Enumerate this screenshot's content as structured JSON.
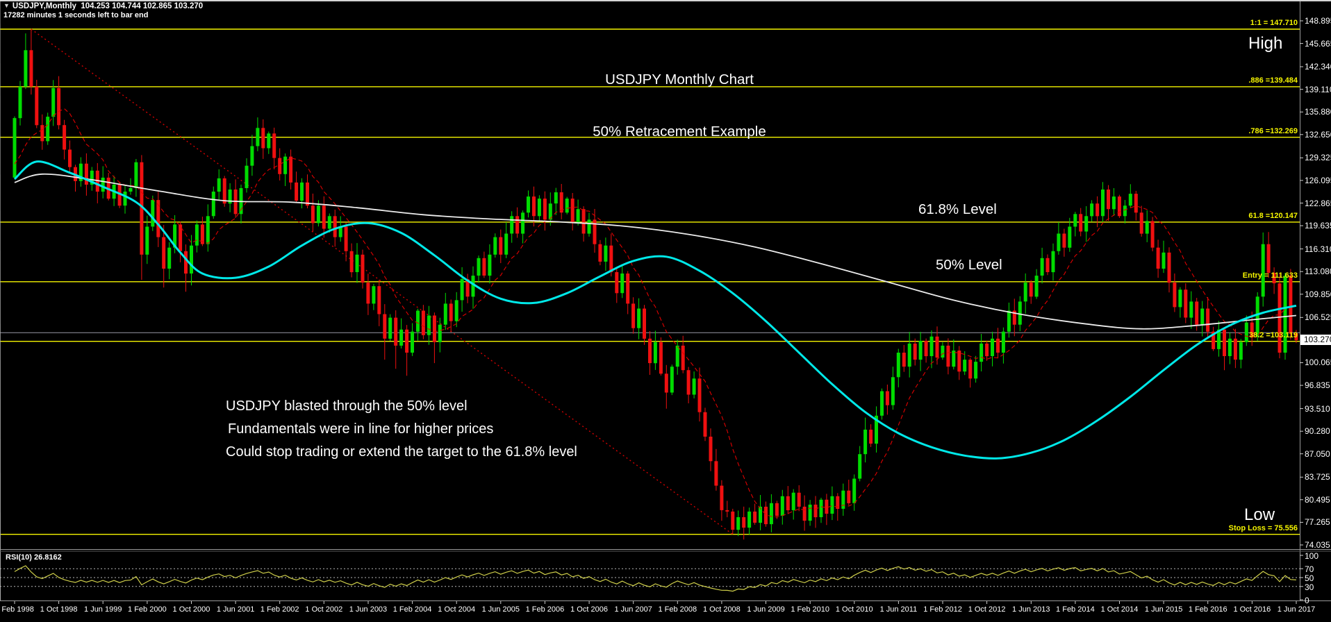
{
  "titlebar": {
    "dropdown_icon": "▼",
    "symbol_info": "USDJPY,Monthly  104.253 104.744 102.865 103.270",
    "countdown": "17282 minutes 1 seconds left to bar end"
  },
  "annotations": {
    "title_line1": "USDJPY Monthly Chart",
    "title_line2": "50% Retracement Example",
    "high": "High",
    "low": "Low",
    "level_618": "61.8% Level",
    "level_50": "50% Level",
    "note1": "USDJPY blasted through the 50% level",
    "note2": "Fundamentals were in line for higher prices",
    "note3": "Could stop trading or extend the target to the 61.8% level"
  },
  "price_axis": {
    "ticks": [
      "148.895",
      "145.665",
      "142.340",
      "139.110",
      "135.880",
      "132.650",
      "129.325",
      "126.095",
      "122.865",
      "119.635",
      "116.310",
      "113.080",
      "109.850",
      "106.525",
      "100.065",
      "96.835",
      "93.510",
      "90.280",
      "87.050",
      "83.725",
      "80.495",
      "77.265",
      "74.035"
    ],
    "current": "103.270"
  },
  "rsi_panel": {
    "label": "RSI(10) 26.8162",
    "period": 10,
    "current_value": 26.8162,
    "scale_labels": [
      "100",
      "70",
      "50",
      "30",
      "0"
    ],
    "dashed_levels": [
      70,
      50,
      30
    ]
  },
  "date_axis": [
    "1 Feb 1998",
    "1 Oct 1998",
    "1 Jun 1999",
    "1 Feb 2000",
    "1 Oct 2000",
    "1 Jun 2001",
    "1 Feb 2002",
    "1 Oct 2002",
    "1 Jun 2003",
    "1 Feb 2004",
    "1 Oct 2004",
    "1 Jun 2005",
    "1 Feb 2006",
    "1 Oct 2006",
    "1 Jun 2007",
    "1 Feb 2008",
    "1 Oct 2008",
    "1 Jun 2009",
    "1 Feb 2010",
    "1 Oct 2010",
    "1 Jun 2011",
    "1 Feb 2012",
    "1 Oct 2012",
    "1 Jun 2013",
    "1 Feb 2014",
    "1 Oct 2014",
    "1 Jun 2015",
    "1 Feb 2016",
    "1 Oct 2016",
    "1 Jun 2017"
  ],
  "fib_levels": [
    {
      "label": "1:1 = 147.710",
      "price": 147.71
    },
    {
      "label": ".886 =139.484",
      "price": 139.484
    },
    {
      "label": ".786 =132.269",
      "price": 132.269
    },
    {
      "label": "61.8 =120.147",
      "price": 120.147
    },
    {
      "label": "Entry = 111.633",
      "price": 111.633
    },
    {
      "label": "38.2 =103.119",
      "price": 103.119
    },
    {
      "label": "Stop Loss = 75.556",
      "price": 75.556
    }
  ],
  "colors": {
    "background": "#000000",
    "candle_up": "#00dc00",
    "candle_down": "#ef1010",
    "fib_line": "#f5f500",
    "ma_fast_dashed": "#e00000",
    "ma_medium": "#00e8e8",
    "ma_slow": "#ececec",
    "trendline": "#d40000",
    "rsi_line": "#cfcf4a",
    "axis_text": "#ffffff",
    "gray_price_line": "#9a9aa6",
    "separator": "#9a9a9a"
  },
  "chart_data": {
    "type": "candlestick",
    "symbol": "USDJPY",
    "timeframe": "Monthly",
    "x_start": "Feb 1998",
    "x_end": "Jun 2017",
    "ylim": [
      74.035,
      148.895
    ],
    "open_first": 126.5,
    "closes": [
      135.0,
      139.5,
      144.7,
      139.5,
      134.0,
      131.7,
      135.2,
      139.3,
      134.0,
      130.5,
      128.0,
      126.0,
      128.5,
      125.5,
      127.5,
      124.5,
      126.5,
      123.5,
      125.5,
      122.5,
      124.5,
      125.0,
      128.7,
      115.5,
      119.5,
      123.3,
      118.0,
      113.5,
      116.5,
      119.8,
      116.0,
      112.8,
      116.8,
      119.8,
      117.0,
      121.0,
      124.5,
      126.4,
      122.8,
      124.8,
      121.3,
      125.0,
      128.2,
      131.0,
      133.6,
      130.7,
      132.8,
      129.3,
      127.0,
      129.5,
      125.8,
      123.2,
      125.8,
      122.5,
      120.0,
      122.5,
      119.2,
      121.0,
      118.0,
      119.5,
      116.0,
      113.0,
      115.5,
      111.5,
      108.5,
      111.0,
      107.0,
      103.5,
      106.5,
      102.5,
      104.8,
      101.5,
      104.5,
      107.5,
      104.0,
      106.8,
      103.0,
      105.5,
      108.5,
      106.0,
      109.0,
      112.0,
      109.5,
      112.5,
      115.0,
      112.5,
      115.5,
      118.0,
      115.5,
      118.5,
      121.0,
      118.5,
      121.5,
      123.8,
      121.0,
      123.5,
      120.5,
      122.8,
      124.4,
      121.5,
      123.5,
      120.0,
      122.0,
      118.5,
      120.5,
      117.0,
      114.5,
      116.8,
      113.0,
      110.0,
      112.8,
      108.5,
      105.0,
      107.8,
      103.5,
      100.0,
      103.0,
      98.5,
      95.8,
      99.5,
      102.5,
      99.0,
      95.5,
      97.8,
      93.0,
      89.5,
      86.0,
      82.5,
      79.0,
      78.8,
      76.2,
      78.0,
      76.5,
      78.8,
      77.2,
      79.5,
      77.0,
      80.0,
      78.2,
      81.0,
      79.0,
      81.5,
      79.5,
      77.5,
      79.8,
      78.0,
      80.5,
      78.5,
      81.0,
      79.2,
      81.8,
      80.0,
      83.5,
      87.0,
      90.5,
      88.5,
      92.5,
      96.0,
      94.0,
      98.0,
      101.5,
      99.5,
      102.8,
      100.5,
      103.2,
      101.0,
      103.8,
      100.8,
      102.5,
      99.5,
      101.8,
      98.8,
      100.5,
      97.8,
      100.2,
      102.8,
      101.0,
      103.5,
      101.5,
      104.5,
      107.5,
      105.5,
      108.8,
      111.5,
      109.5,
      112.5,
      115.0,
      113.0,
      116.0,
      118.5,
      116.5,
      119.5,
      121.3,
      118.8,
      121.0,
      122.8,
      121.0,
      124.8,
      122.0,
      123.8,
      121.0,
      122.5,
      124.2,
      121.5,
      118.5,
      120.3,
      116.5,
      113.5,
      115.8,
      111.5,
      108.0,
      110.5,
      106.5,
      108.8,
      105.5,
      107.8,
      104.5,
      102.0,
      104.8,
      101.0,
      103.5,
      100.5,
      103.0,
      105.8,
      103.8,
      109.5,
      117.0,
      112.9,
      111.4,
      101.5,
      112.5,
      104.25,
      103.27
    ],
    "pre_pad_closes": [
      130.0,
      128.5,
      129.5,
      127.8,
      129.2,
      127.5,
      128.8,
      127.0,
      128.2,
      126.5,
      127.6,
      126.8
    ],
    "wick_overrides": {
      "2": {
        "h": 147.1
      },
      "3": {
        "h": 147.71
      },
      "23": {
        "l": 111.9
      },
      "27": {
        "l": 110.8
      },
      "31": {
        "l": 110.2
      },
      "44": {
        "h": 135.1
      },
      "67": {
        "l": 100.5
      },
      "69": {
        "l": 99.2
      },
      "71": {
        "l": 98.2
      },
      "76": {
        "l": 100.0
      },
      "118": {
        "l": 93.5
      },
      "130": {
        "l": 75.56
      },
      "197": {
        "h": 125.86
      },
      "219": {
        "l": 99.0
      },
      "221": {
        "l": 99.3
      },
      "226": {
        "h": 118.66
      },
      "230": {
        "l": 100.5
      }
    },
    "last_bar": {
      "open": 104.253,
      "high": 104.744,
      "low": 102.865,
      "close": 103.27
    },
    "ma_slow_points": [
      [
        0,
        125.8
      ],
      [
        5,
        127.0
      ],
      [
        14,
        126.2
      ],
      [
        26,
        124.6
      ],
      [
        38,
        123.2
      ],
      [
        50,
        123.0
      ],
      [
        62,
        122.2
      ],
      [
        74,
        121.2
      ],
      [
        86,
        120.6
      ],
      [
        98,
        120.2
      ],
      [
        110,
        119.6
      ],
      [
        122,
        118.4
      ],
      [
        134,
        116.6
      ],
      [
        146,
        114.2
      ],
      [
        158,
        111.6
      ],
      [
        170,
        109.0
      ],
      [
        182,
        107.0
      ],
      [
        194,
        105.6
      ],
      [
        204,
        104.9
      ],
      [
        214,
        105.4
      ],
      [
        224,
        106.2
      ],
      [
        232,
        106.8
      ]
    ],
    "ma_medium_points": [
      [
        0,
        126.3
      ],
      [
        4,
        128.8
      ],
      [
        10,
        127.2
      ],
      [
        16,
        125.2
      ],
      [
        22,
        123.0
      ],
      [
        26,
        119.8
      ],
      [
        30,
        115.8
      ],
      [
        34,
        112.8
      ],
      [
        40,
        112.2
      ],
      [
        46,
        113.8
      ],
      [
        52,
        116.8
      ],
      [
        58,
        119.2
      ],
      [
        64,
        120.0
      ],
      [
        70,
        118.6
      ],
      [
        76,
        115.4
      ],
      [
        82,
        111.8
      ],
      [
        88,
        109.2
      ],
      [
        94,
        108.6
      ],
      [
        100,
        110.0
      ],
      [
        106,
        112.4
      ],
      [
        112,
        114.6
      ],
      [
        118,
        115.2
      ],
      [
        124,
        113.2
      ],
      [
        130,
        110.0
      ],
      [
        136,
        106.0
      ],
      [
        142,
        101.5
      ],
      [
        148,
        97.0
      ],
      [
        154,
        93.0
      ],
      [
        160,
        90.0
      ],
      [
        166,
        88.0
      ],
      [
        172,
        86.8
      ],
      [
        178,
        86.4
      ],
      [
        184,
        87.2
      ],
      [
        190,
        89.0
      ],
      [
        196,
        91.8
      ],
      [
        202,
        95.2
      ],
      [
        208,
        99.0
      ],
      [
        214,
        102.6
      ],
      [
        220,
        105.4
      ],
      [
        226,
        107.2
      ],
      [
        232,
        108.2
      ]
    ],
    "ma_fast_period": 10,
    "trendline": {
      "from_bar": 3,
      "from_price": 147.71,
      "to_bar": 130,
      "to_price": 75.56
    },
    "gray_price_line": 104.35
  }
}
